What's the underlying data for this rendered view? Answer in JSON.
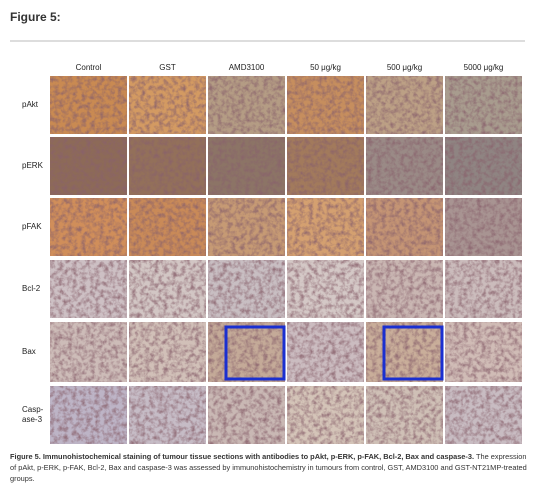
{
  "header": {
    "title": "Figure 5:"
  },
  "figure": {
    "columns": [
      "Control",
      "GST",
      "AMD3100",
      "50 μg/kg",
      "500 μg/kg",
      "5000 μg/kg"
    ],
    "rows": [
      [
        "pAkt"
      ],
      [
        "pERK"
      ],
      [
        "pFAK"
      ],
      [
        "Bcl-2"
      ],
      [
        "Bax"
      ],
      [
        "Casp-",
        "ase-3"
      ]
    ]
  },
  "caption": {
    "bold": "Figure 5. Immunohistochemical staining of tumour tissue sections with antibodies to pAkt, p-ERK, p-FAK, Bcl-2, Bax and caspase-3.",
    "text": "The expression of pAkt, p-ERK, p-FAK, Bcl-2, Bax and caspase-3 was assessed by immunohistochemistry in tumours from control, GST, AMD3100 and GST-NT21MP-treated groups."
  }
}
